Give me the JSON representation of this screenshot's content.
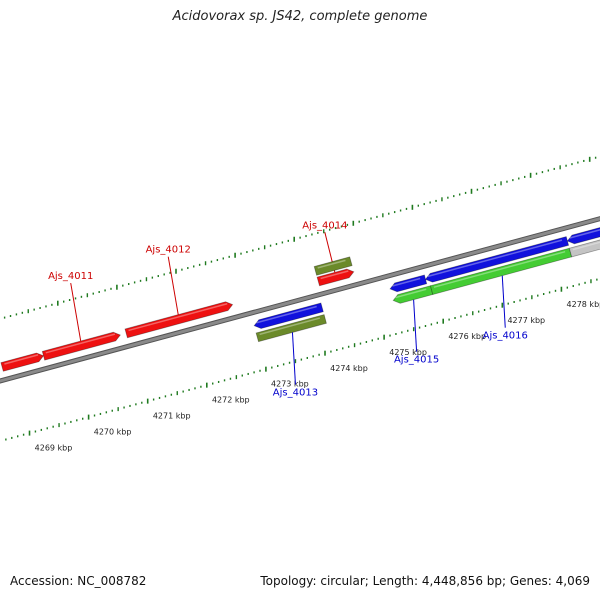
{
  "title": "Acidovorax sp. JS42, complete genome",
  "footer": {
    "accession": "Accession: NC_008782",
    "topology": "Topology: circular; Length: 4,448,856 bp; Genes: 4,069"
  },
  "colors": {
    "backbone": "#8a8a8a",
    "tick": "#1f7a1f",
    "forward_label": "#cc0000",
    "reverse_label": "#0000cc",
    "red": "#ee1111",
    "blue": "#1111dd",
    "olive": "#6b8a2a",
    "green": "#44cc33",
    "grey": "#c4c4c4"
  },
  "tick_labels": [
    {
      "kbp": 4269,
      "text": "4269 kbp"
    },
    {
      "kbp": 4270,
      "text": "4270 kbp"
    },
    {
      "kbp": 4271,
      "text": "4271 kbp"
    },
    {
      "kbp": 4272,
      "text": "4272 kbp"
    },
    {
      "kbp": 4273,
      "text": "4273 kbp"
    },
    {
      "kbp": 4274,
      "text": "4274 kbp"
    },
    {
      "kbp": 4275,
      "text": "4275 kbp"
    },
    {
      "kbp": 4276,
      "text": "4276 kbp"
    },
    {
      "kbp": 4277,
      "text": "4277 kbp"
    },
    {
      "kbp": 4278,
      "text": "4278 kbp"
    }
  ],
  "features": [
    {
      "track": "fwd_cds",
      "start": 4268.85,
      "end": 4269.55,
      "color": "red",
      "arrow": "end"
    },
    {
      "track": "fwd_cds",
      "start": 4269.55,
      "end": 4270.85,
      "color": "red",
      "arrow": "end",
      "label": "Ajs_4011",
      "label_side": "up"
    },
    {
      "track": "fwd_cds",
      "start": 4270.95,
      "end": 4272.75,
      "color": "red",
      "arrow": "end",
      "label": "Ajs_4012",
      "label_side": "up"
    },
    {
      "track": "fwd_cds",
      "start": 4274.2,
      "end": 4274.8,
      "color": "red",
      "arrow": "end",
      "label": "Ajs_4014",
      "label_side": "up"
    },
    {
      "track": "fwd_gene",
      "start": 4274.2,
      "end": 4274.8,
      "color": "olive",
      "arrow": "none"
    },
    {
      "track": "rev_cds",
      "start": 4273.0,
      "end": 4274.15,
      "color": "blue",
      "arrow": "start"
    },
    {
      "track": "rev_gene",
      "start": 4273.0,
      "end": 4274.15,
      "color": "olive",
      "arrow": "none",
      "label": "Ajs_4013",
      "label_side": "down"
    },
    {
      "track": "rev_cds",
      "start": 4275.3,
      "end": 4275.9,
      "color": "blue",
      "arrow": "start"
    },
    {
      "track": "rev_gene",
      "start": 4275.3,
      "end": 4275.95,
      "color": "green",
      "arrow": "start",
      "label": "Ajs_4015",
      "label_side": "down"
    },
    {
      "track": "rev_cds",
      "start": 4275.9,
      "end": 4278.3,
      "color": "blue",
      "arrow": "start"
    },
    {
      "track": "rev_gene",
      "start": 4275.95,
      "end": 4278.3,
      "color": "green",
      "arrow": "none",
      "label": "Ajs_4016",
      "label_side": "down"
    },
    {
      "track": "rev_cds",
      "start": 4278.3,
      "end": 4279.1,
      "color": "blue",
      "arrow": "start"
    },
    {
      "track": "rev_gene",
      "start": 4278.3,
      "end": 4279.4,
      "color": "grey",
      "arrow": "none"
    }
  ]
}
